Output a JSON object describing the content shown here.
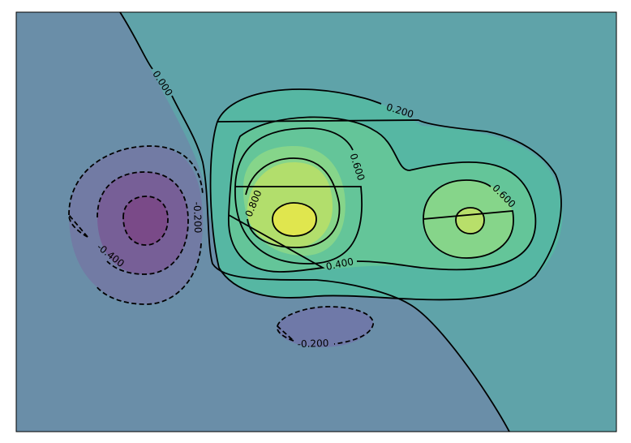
{
  "chart_data": {
    "type": "contour",
    "title": "",
    "xlabel": "",
    "ylabel": "",
    "show_ticks": false,
    "grid": false,
    "colormap": "viridis",
    "zlim": [
      -0.5,
      1.0
    ],
    "levels": [
      -0.4,
      -0.2,
      0.0,
      0.2,
      0.4,
      0.6,
      0.8
    ],
    "negative_linestyle": "dashed",
    "line_color": "#000000",
    "contour_labels": [
      {
        "value": 0.0,
        "text": "0.000"
      },
      {
        "value": 0.2,
        "text": "0.200"
      },
      {
        "value": 0.6,
        "text": "0.600"
      },
      {
        "value": 0.8,
        "text": "0.800"
      },
      {
        "value": -0.2,
        "text": "-0.200"
      },
      {
        "value": -0.4,
        "text": "-0.400"
      },
      {
        "value": 0.4,
        "text": "0.400"
      },
      {
        "value": 0.6,
        "text": "0.600"
      },
      {
        "value": -0.2,
        "text": "-0.200"
      }
    ],
    "fill_colors": {
      "-0.4": "#7a4f8d",
      "-0.2": "#7a6aa0",
      "0.0": "#6a86a6",
      "0.2": "#60a4aa",
      "0.4": "#57b8a2",
      "0.6": "#66c898",
      "0.8": "#86d58a",
      "0.9": "#b6e06c",
      "1.0": "#e3e84f"
    }
  }
}
